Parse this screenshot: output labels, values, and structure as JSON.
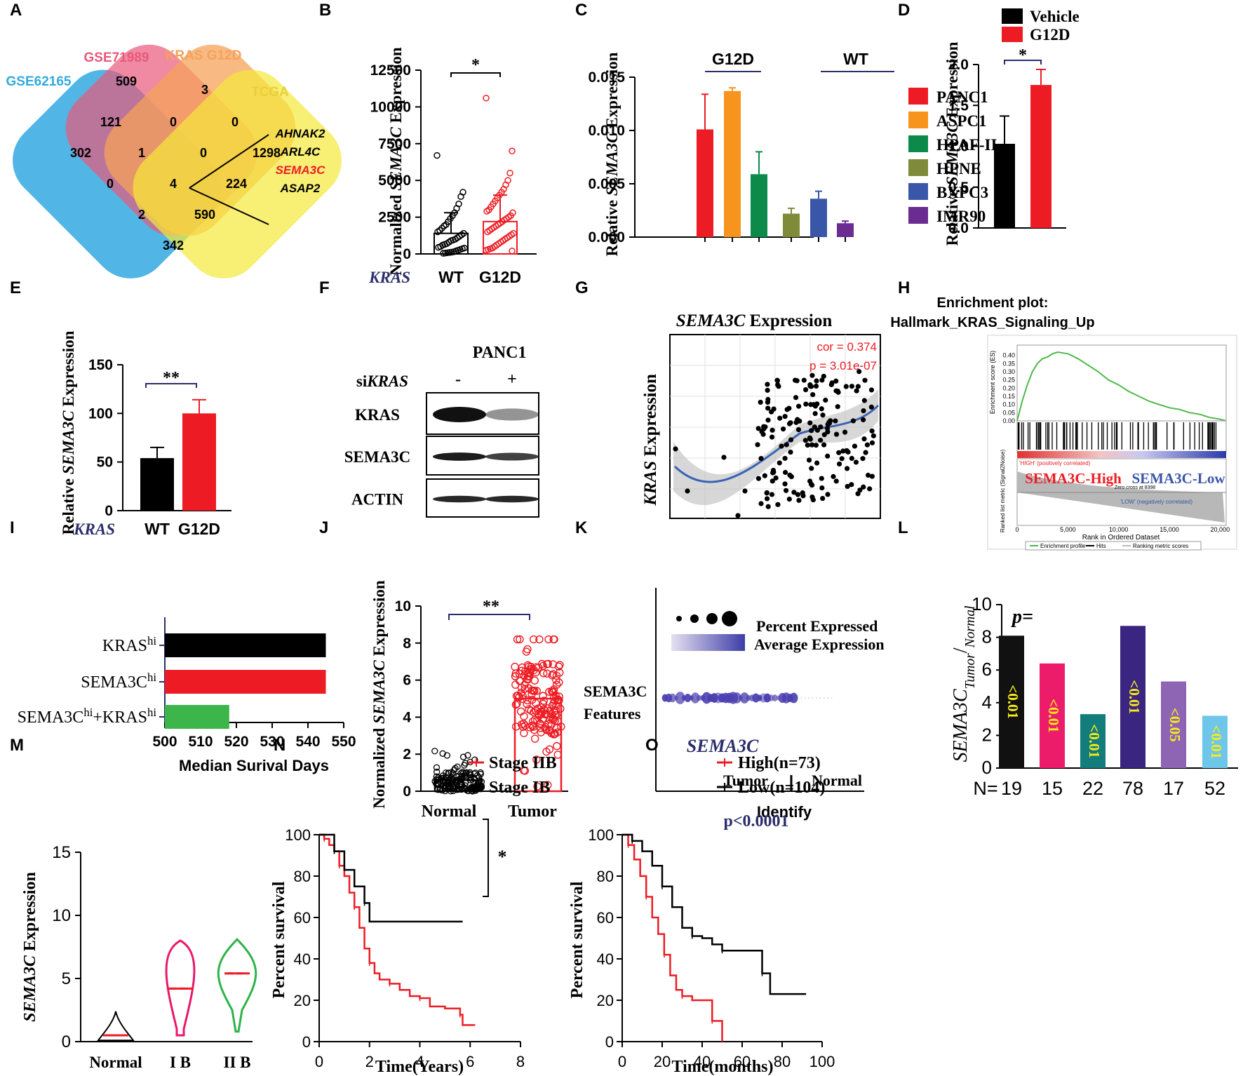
{
  "panel_letters": [
    "A",
    "B",
    "C",
    "D",
    "E",
    "F",
    "G",
    "H",
    "I",
    "J",
    "K",
    "L",
    "M",
    "N",
    "O"
  ],
  "colors": {
    "red": "#ed1c24",
    "orange": "#f7941d",
    "green": "#0b8a4a",
    "olive": "#808b3a",
    "blue": "#3a56a8",
    "purple": "#6a2c91",
    "black": "#000000",
    "navy": "#2b2e6b"
  },
  "venn": {
    "sets": [
      "GSE62165",
      "GSE71989",
      "KRAS G12D",
      "TCGA"
    ],
    "regions": [
      "302",
      "509",
      "3",
      "1298",
      "121",
      "0",
      "0",
      "0",
      "1",
      "0",
      "4",
      "224",
      "2",
      "590",
      "342"
    ],
    "genes": [
      "AHNAK2",
      "ARL4C",
      "SEMA3C",
      "ASAP2"
    ]
  },
  "chart_data": [
    {
      "panel": "B",
      "type": "bar",
      "categories": [
        "WT",
        "G12D"
      ],
      "values": [
        1400,
        2200
      ],
      "errors": [
        1400,
        1800
      ],
      "ylabel_pre": "Normalized ",
      "ylabel_gene": "SEMA3C",
      "ylabel_post": " Expression",
      "xlabel_prefix": "KRAS",
      "yticks": [
        "0",
        "2500",
        "5000",
        "7500",
        "10000",
        "12500"
      ],
      "ylim": [
        0,
        12500
      ],
      "significance": "*",
      "points": {
        "WT": [
          6700,
          4200,
          3900,
          3400,
          3100,
          2800,
          2600,
          2400,
          2200,
          2000,
          1900,
          1750,
          1600,
          1500,
          1400,
          1300,
          1200,
          1100,
          1000,
          950,
          900,
          800,
          700,
          650,
          600,
          500,
          450,
          400,
          350,
          300,
          250,
          200,
          150,
          120,
          100,
          80,
          60,
          40
        ],
        "G12D": [
          10600,
          7000,
          5500,
          5000,
          4700,
          4400,
          4200,
          4000,
          3800,
          3600,
          3400,
          3200,
          3000,
          2900,
          2800,
          2600,
          2500,
          2400,
          2300,
          2200,
          2100,
          2000,
          1900,
          1800,
          1700,
          1600,
          1500,
          1400,
          1300,
          1200,
          1100,
          1000,
          900,
          800,
          700,
          600,
          500,
          400,
          350,
          300,
          250,
          200
        ]
      }
    },
    {
      "panel": "C",
      "type": "bar",
      "groups": [
        "G12D",
        "WT"
      ],
      "series": [
        {
          "name": "PANC1",
          "value": 0.0101,
          "error": 0.0033
        },
        {
          "name": "ASPC1",
          "value": 0.0137,
          "error": 0.0003
        },
        {
          "name": "HPAF-II",
          "value": 0.0059,
          "error": 0.0021
        },
        {
          "name": "HPNE",
          "value": 0.0022,
          "error": 0.0005
        },
        {
          "name": "BXPC3",
          "value": 0.0036,
          "error": 0.0007
        },
        {
          "name": "IMR90",
          "value": 0.0013,
          "error": 0.0002
        }
      ],
      "ylabel_pre": "Relative ",
      "ylabel_gene": "SEMA3C",
      "ylabel_post": " Expression",
      "yticks": [
        "0.000",
        "0.005",
        "0.010",
        "0.015"
      ],
      "ylim": [
        0,
        0.015
      ]
    },
    {
      "panel": "D",
      "type": "bar",
      "categories": [
        "Vehicle",
        "G12D"
      ],
      "values": [
        1.03,
        1.75
      ],
      "errors": [
        0.34,
        0.19
      ],
      "ylabel_pre": "Relative ",
      "ylabel_gene": "SEMA3C",
      "ylabel_post": " Expression",
      "yticks": [
        "0.0",
        "0.5",
        "1.0",
        "1.5",
        "2.0"
      ],
      "ylim": [
        0,
        2.0
      ],
      "significance": "*"
    },
    {
      "panel": "E",
      "type": "bar",
      "categories": [
        "WT",
        "G12D"
      ],
      "values": [
        54,
        100
      ],
      "errors": [
        11,
        14
      ],
      "ylabel_pre": "Relative ",
      "ylabel_gene": "SEMA3C",
      "ylabel_post": " Expression",
      "xlabel_prefix": "KRAS",
      "yticks": [
        "0",
        "50",
        "100",
        "150"
      ],
      "ylim": [
        0,
        150
      ],
      "significance": "**"
    },
    {
      "panel": "G",
      "type": "scatter",
      "title_gene": "SEMA3C",
      "title_post": " Expression",
      "ylabel_gene": "KRAS",
      "ylabel_post": " Expression",
      "cor": "cor = 0.374",
      "p": "p = 3.01e-07"
    },
    {
      "panel": "H",
      "type": "line",
      "title1": "Enrichment plot:",
      "title2": "Hallmark_KRAS_Signaling_Up",
      "ylabel": "Enrichment score (ES)",
      "yticks": [
        "0.00",
        "0.05",
        "0.10",
        "0.15",
        "0.20",
        "0.25",
        "0.30",
        "0.35",
        "0.40"
      ],
      "xticks": [
        "0",
        "5,000",
        "10,000",
        "15,000",
        "20,000"
      ],
      "xlabel": "Rank in Ordered Dataset",
      "high_label": "SEMA3C-High",
      "low_label": "SEMA3C-Low",
      "ylabel2": "Ranked list metric (Signal2Noise)",
      "legend": [
        "Enrichment profile",
        "Hits",
        "Ranking metric scores"
      ],
      "pos_text": "'HIGH' (positively correlated)",
      "neg_text": "'LOW' (negatively correlated)",
      "zero_text": "Zero cross at 8398",
      "es": [
        [
          0,
          0.0
        ],
        [
          500,
          0.12
        ],
        [
          1000,
          0.22
        ],
        [
          1500,
          0.3
        ],
        [
          2000,
          0.35
        ],
        [
          2500,
          0.38
        ],
        [
          3000,
          0.39
        ],
        [
          3500,
          0.41
        ],
        [
          4000,
          0.42
        ],
        [
          4500,
          0.415
        ],
        [
          5000,
          0.41
        ],
        [
          6000,
          0.38
        ],
        [
          7000,
          0.34
        ],
        [
          8000,
          0.3
        ],
        [
          9000,
          0.25
        ],
        [
          10000,
          0.22
        ],
        [
          11000,
          0.18
        ],
        [
          12000,
          0.15
        ],
        [
          13000,
          0.12
        ],
        [
          14000,
          0.1
        ],
        [
          15000,
          0.08
        ],
        [
          16000,
          0.07
        ],
        [
          17000,
          0.05
        ],
        [
          18000,
          0.04
        ],
        [
          19000,
          0.02
        ],
        [
          20000,
          0.01
        ],
        [
          20600,
          0.0
        ]
      ]
    },
    {
      "panel": "I",
      "type": "bar",
      "orientation": "horizontal",
      "categories": [
        "KRAS",
        "SEMA3C",
        "SEMA3C"
      ],
      "sups": [
        "hi",
        "hi",
        "hi"
      ],
      "suffix3": "+KRAS",
      "values": [
        545,
        545,
        518
      ],
      "xticks": [
        "500",
        "510",
        "520",
        "530",
        "540",
        "550"
      ],
      "xlim": [
        500,
        550
      ],
      "xlabel": "Median Surival Days"
    },
    {
      "panel": "J",
      "type": "bar",
      "categories": [
        "Normal",
        "Tumor"
      ],
      "values": [
        0.6,
        5.0
      ],
      "ylabel_pre": "Normalized ",
      "ylabel_gene": "SEMA3C",
      "ylabel_post": " Expression",
      "yticks": [
        "0",
        "2",
        "4",
        "6",
        "8",
        "10"
      ],
      "ylim": [
        0,
        10
      ],
      "significance": "**"
    },
    {
      "panel": "K",
      "type": "dot",
      "legend1": "Percent Expressed",
      "legend2": "Average Expression",
      "feature1": "SEMA3C",
      "feature2": "Features",
      "xlabel": "Identify",
      "group1": "Tumor",
      "group2": "Normal"
    },
    {
      "panel": "L",
      "type": "bar",
      "ylabel_main": "SEMA3C",
      "ylabel_sub": "Tumor",
      "ylabel_sub2": "Normal",
      "p_label": "p=",
      "n_label": "N=",
      "categories": [
        "19",
        "15",
        "22",
        "78",
        "17",
        "52"
      ],
      "values": [
        8.1,
        6.4,
        3.3,
        8.7,
        5.3,
        3.2
      ],
      "pvalues": [
        "<0.01",
        "<0.01",
        "<0.01",
        "<0.01",
        "<0.05",
        "<0.01"
      ],
      "bar_colors": [
        "#111111",
        "#ec1c6b",
        "#127d7a",
        "#3a2580",
        "#8e64b4",
        "#6ec6ea"
      ],
      "yticks": [
        "0",
        "2",
        "4",
        "6",
        "8",
        "10"
      ],
      "ylim": [
        0,
        10
      ]
    },
    {
      "panel": "M",
      "type": "violin",
      "categories": [
        "Normal",
        "I B",
        "II B"
      ],
      "medians": [
        0.5,
        4.2,
        5.4
      ],
      "ylabel_gene": "SEMA3C",
      "ylabel_post": " Expression",
      "yticks": [
        "0",
        "5",
        "10",
        "15"
      ],
      "ylim": [
        0,
        15
      ]
    },
    {
      "panel": "N",
      "type": "line",
      "series": [
        {
          "name": "Stage IIB",
          "points": [
            [
              0,
              100
            ],
            [
              0.2,
              98
            ],
            [
              0.4,
              95
            ],
            [
              0.6,
              92
            ],
            [
              0.8,
              85
            ],
            [
              1.0,
              80
            ],
            [
              1.2,
              72
            ],
            [
              1.4,
              65
            ],
            [
              1.6,
              55
            ],
            [
              1.8,
              45
            ],
            [
              2.0,
              38
            ],
            [
              2.2,
              33
            ],
            [
              2.4,
              30
            ],
            [
              2.8,
              28
            ],
            [
              3.2,
              25
            ],
            [
              3.6,
              22
            ],
            [
              4.0,
              21
            ],
            [
              4.4,
              17
            ],
            [
              5.0,
              16
            ],
            [
              5.6,
              13
            ],
            [
              5.7,
              8
            ],
            [
              6.2,
              8
            ]
          ]
        },
        {
          "name": "Stage  IB",
          "points": [
            [
              0,
              100
            ],
            [
              0.6,
              92
            ],
            [
              1.0,
              83
            ],
            [
              1.4,
              75
            ],
            [
              1.8,
              67
            ],
            [
              2.0,
              58
            ],
            [
              5.7,
              58
            ]
          ]
        }
      ],
      "xlabel": "Time(Years)",
      "ylabel": "Percent survival",
      "xticks": [
        "0",
        "2",
        "4",
        "6",
        "8"
      ],
      "yticks": [
        "0",
        "20",
        "40",
        "60",
        "80",
        "100"
      ],
      "significance": "*"
    },
    {
      "panel": "O",
      "type": "line",
      "title": "SEMA3C",
      "series": [
        {
          "name": "High(n=73)",
          "points": [
            [
              0,
              100
            ],
            [
              3,
              95
            ],
            [
              6,
              88
            ],
            [
              9,
              80
            ],
            [
              12,
              70
            ],
            [
              15,
              60
            ],
            [
              18,
              52
            ],
            [
              21,
              42
            ],
            [
              24,
              32
            ],
            [
              27,
              25
            ],
            [
              30,
              22
            ],
            [
              35,
              20
            ],
            [
              42,
              20
            ],
            [
              45,
              10
            ],
            [
              48,
              10
            ],
            [
              50,
              0
            ]
          ]
        },
        {
          "name": "Low(n=104)",
          "points": [
            [
              0,
              100
            ],
            [
              5,
              97
            ],
            [
              10,
              92
            ],
            [
              15,
              85
            ],
            [
              20,
              75
            ],
            [
              25,
              65
            ],
            [
              30,
              55
            ],
            [
              35,
              51
            ],
            [
              40,
              50
            ],
            [
              45,
              47
            ],
            [
              50,
              44
            ],
            [
              60,
              44
            ],
            [
              68,
              44
            ],
            [
              70,
              33
            ],
            [
              74,
              23
            ],
            [
              92,
              23
            ]
          ]
        }
      ],
      "xlabel": "Time(months)",
      "ylabel": "Percent survival",
      "xticks": [
        "0",
        "20",
        "40",
        "60",
        "80",
        "100"
      ],
      "yticks": [
        "0",
        "20",
        "40",
        "60",
        "80",
        "100"
      ],
      "pval": "p<0.0001"
    },
    {
      "panel": "F",
      "type": "blot",
      "title": "PANC1",
      "row_prefix": "si",
      "row_gene": "KRAS",
      "lanes": [
        "-",
        "+"
      ],
      "bands": [
        "KRAS",
        "SEMA3C",
        "ACTIN"
      ],
      "intensity": [
        [
          1.0,
          0.45
        ],
        [
          0.95,
          0.8
        ],
        [
          0.9,
          0.9
        ]
      ]
    }
  ]
}
